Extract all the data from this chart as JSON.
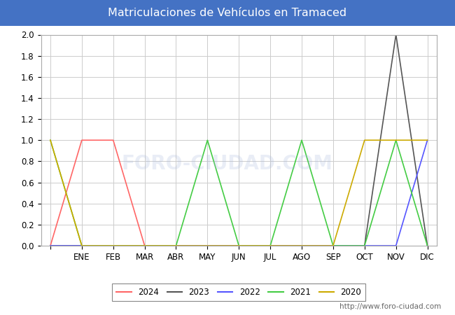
{
  "title": "Matriculaciones de Vehículos en Tramaced",
  "title_color": "#ffffff",
  "title_bg_color": "#4472c4",
  "months": [
    "",
    "ENE",
    "FEB",
    "MAR",
    "ABR",
    "MAY",
    "JUN",
    "JUL",
    "AGO",
    "SEP",
    "OCT",
    "NOV",
    "DIC"
  ],
  "x_positions": [
    0,
    1,
    2,
    3,
    4,
    5,
    6,
    7,
    8,
    9,
    10,
    11,
    12
  ],
  "series": {
    "2024": {
      "color": "#ff6666",
      "data": [
        0,
        1,
        1,
        0,
        0,
        0,
        null,
        null,
        null,
        null,
        null,
        null,
        null
      ]
    },
    "2023": {
      "color": "#555555",
      "data": [
        0,
        0,
        0,
        0,
        0,
        0,
        0,
        0,
        0,
        0,
        0,
        2,
        0
      ]
    },
    "2022": {
      "color": "#5555ff",
      "data": [
        0,
        0,
        0,
        0,
        0,
        0,
        0,
        0,
        0,
        0,
        0,
        0,
        1
      ]
    },
    "2021": {
      "color": "#44cc44",
      "data": [
        1,
        0,
        0,
        0,
        0,
        1,
        0,
        0,
        1,
        0,
        0,
        1,
        0
      ]
    },
    "2020": {
      "color": "#ccaa00",
      "data": [
        1,
        0,
        0,
        0,
        0,
        0,
        0,
        0,
        0,
        0,
        1,
        1,
        1
      ]
    }
  },
  "ylim": [
    0,
    2.0
  ],
  "yticks": [
    0.0,
    0.2,
    0.4,
    0.6,
    0.8,
    1.0,
    1.2,
    1.4,
    1.6,
    1.8,
    2.0
  ],
  "grid_color": "#cccccc",
  "fig_bg_color": "#ffffff",
  "plot_bg_color": "#ffffff",
  "watermark": "http://www.foro-ciudad.com",
  "legend_labels": [
    "2024",
    "2023",
    "2022",
    "2021",
    "2020"
  ],
  "legend_colors": [
    "#ff6666",
    "#555555",
    "#5555ff",
    "#44cc44",
    "#ccaa00"
  ]
}
